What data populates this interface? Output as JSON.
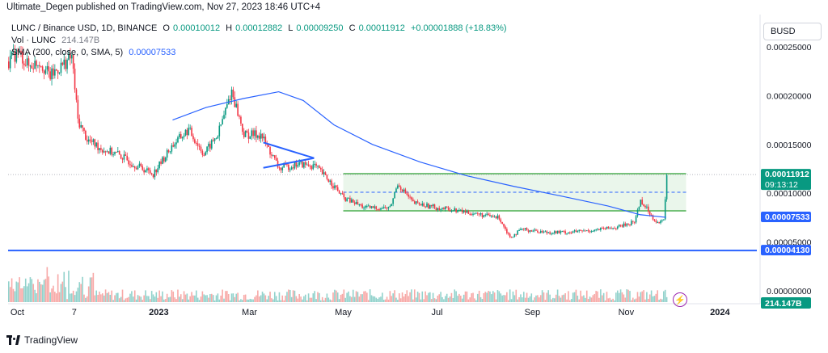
{
  "header": {
    "published": "Ultimate_Degen published on TradingView.com, Nov 27, 2023 18:46 UTC+4"
  },
  "legend": {
    "symbol": "LUNC / Binance USD, 1D, BINANCE",
    "o_label": "O",
    "o": "0.00010012",
    "h_label": "H",
    "h": "0.00012882",
    "l_label": "L",
    "l": "0.00009250",
    "c_label": "C",
    "c": "0.00011912",
    "change": "+0.00001888 (+18.83%)",
    "vol_label": "Vol · LUNC",
    "vol": "214.147B",
    "sma_label": "SMA (200, close, 0, SMA, 5)",
    "sma": "0.00007533"
  },
  "currency_button": "BUSD",
  "footer": {
    "brand": "TradingView"
  },
  "colors": {
    "up": "#089981",
    "down": "#f23645",
    "sma": "#2962ff",
    "support": "#2962ff",
    "box_border": "#4caf50",
    "box_fill": "#e8f5e9",
    "triangle": "#2962ff"
  },
  "chart_data": {
    "type": "line",
    "title": "LUNC / Binance USD, 1D, BINANCE",
    "ylim": [
      0.0,
      0.00026
    ],
    "y_ticks": [
      "0.00000000",
      "0.00005000",
      "0.00010000",
      "0.00015000",
      "0.00020000",
      "0.00025000"
    ],
    "y_tick_values": [
      0.0,
      5e-05,
      0.0001,
      0.00015,
      0.0002,
      0.00025
    ],
    "x_ticks": [
      "Oct",
      "7",
      "2023",
      "Mar",
      "May",
      "Jul",
      "Sep",
      "Nov",
      "2024"
    ],
    "x_tick_dates": [
      "2022-10-01",
      "2022-11-07",
      "2023-01-01",
      "2023-03-01",
      "2023-05-01",
      "2023-07-01",
      "2023-09-01",
      "2023-11-01",
      "2024-01-01"
    ],
    "x_range": [
      "2022-09-25",
      "2024-01-25"
    ],
    "price_series": {
      "name": "LUNC / Binance USD",
      "dates": [
        "2022-09-25",
        "2022-10-01",
        "2022-10-08",
        "2022-10-15",
        "2022-10-22",
        "2022-10-29",
        "2022-11-05",
        "2022-11-09",
        "2022-11-15",
        "2022-11-25",
        "2022-12-05",
        "2022-12-15",
        "2022-12-28",
        "2023-01-10",
        "2023-01-20",
        "2023-01-30",
        "2023-02-08",
        "2023-02-17",
        "2023-02-25",
        "2023-03-08",
        "2023-03-20",
        "2023-04-01",
        "2023-04-12",
        "2023-04-22",
        "2023-05-01",
        "2023-05-15",
        "2023-05-31",
        "2023-06-05",
        "2023-06-15",
        "2023-07-01",
        "2023-07-15",
        "2023-08-01",
        "2023-08-10",
        "2023-08-17",
        "2023-08-25",
        "2023-09-10",
        "2023-09-25",
        "2023-10-10",
        "2023-10-25",
        "2023-11-01",
        "2023-11-06",
        "2023-11-10",
        "2023-11-18",
        "2023-11-22",
        "2023-11-25",
        "2023-11-27"
      ],
      "values": [
        0.000235,
        0.000245,
        0.00023,
        0.000235,
        0.00022,
        0.00023,
        0.00024,
        0.000175,
        0.000155,
        0.000145,
        0.00014,
        0.00013,
        0.00012,
        0.00015,
        0.000165,
        0.00014,
        0.00016,
        0.000205,
        0.00016,
        0.00016,
        0.000125,
        0.00013,
        0.000128,
        0.000112,
        9.5e-05,
        8.5e-05,
        8.5e-05,
        0.00011,
        9e-05,
        8.5e-05,
        8.2e-05,
        7.7e-05,
        7.5e-05,
        5.5e-05,
        6.3e-05,
        6e-05,
        6e-05,
        6.2e-05,
        6.5e-05,
        6.8e-05,
        7.1e-05,
        9.3e-05,
        7.5e-05,
        6.9e-05,
        7.2e-05,
        0.000119
      ]
    },
    "sma_series": {
      "name": "SMA (200, close, 0, SMA, 5)",
      "dates": [
        "2023-01-10",
        "2023-02-01",
        "2023-02-25",
        "2023-03-20",
        "2023-04-05",
        "2023-04-25",
        "2023-05-20",
        "2023-06-20",
        "2023-07-20",
        "2023-08-20",
        "2023-09-20",
        "2023-10-20",
        "2023-11-10",
        "2023-11-27"
      ],
      "values": [
        0.000175,
        0.000188,
        0.000197,
        0.000204,
        0.000195,
        0.00017,
        0.00015,
        0.000132,
        0.000118,
        0.000107,
        9.7e-05,
        8.7e-05,
        7.8e-05,
        7.53e-05
      ]
    },
    "volume_series": {
      "name": "Vol · LUNC",
      "last_value": "214.147B"
    },
    "annotations": {
      "support_line": 4.13e-05,
      "range_box": {
        "from": "2023-05-01",
        "to": "2023-12-10",
        "top": 0.00012,
        "bottom": 8.2e-05
      },
      "range_mid": 0.000101,
      "triangle": {
        "from": "2023-03-10",
        "to": "2023-04-12",
        "upper_start": 0.000152,
        "lower_start": 0.000126,
        "apex": 0.000136
      },
      "current_price_line": 0.00011912
    },
    "labels": {
      "last_price": "0.00011912",
      "countdown": "09:13:12",
      "sma_value": "0.00007533",
      "support_value": "0.00004130",
      "volume_value": "214.147B"
    },
    "grid": false
  }
}
